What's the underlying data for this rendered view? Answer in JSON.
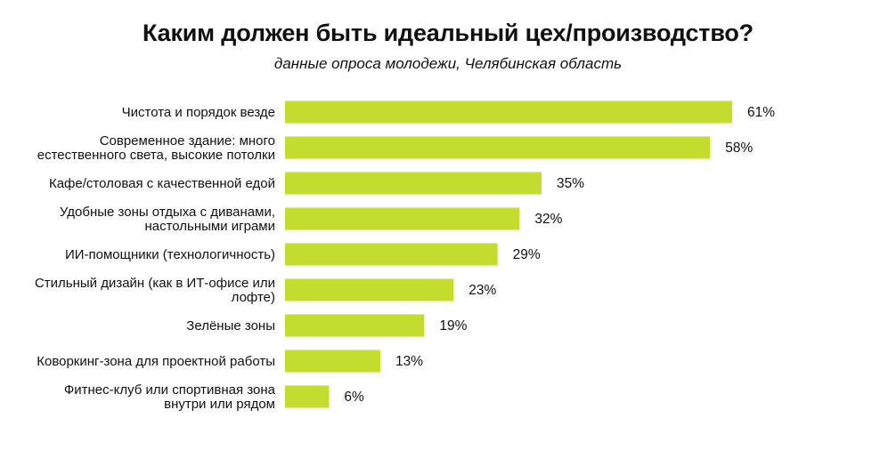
{
  "title": "Каким должен быть идеальный цех/производство?",
  "subtitle": "данные опроса молодежи, Челябинская область",
  "colors": {
    "bar": "#c3dc2e",
    "text": "#111111",
    "background": "#ffffff"
  },
  "chart_data": {
    "type": "bar",
    "orientation": "horizontal",
    "title": "Каким должен быть идеальный цех/производство?",
    "subtitle": "данные опроса молодежи, Челябинская область",
    "unit": "%",
    "grid": false,
    "legend": "none",
    "xlim": [
      0,
      61
    ],
    "categories": [
      [
        "Чистота и порядок везде"
      ],
      [
        "Современное здание: много",
        "естественного света, высокие потолки"
      ],
      [
        "Кафе/столовая с качественной едой"
      ],
      [
        "Удобные зоны отдыха с диванами,",
        "настольными играми"
      ],
      [
        "ИИ-помощники (технологичность)"
      ],
      [
        "Стильный дизайн (как в ИТ-офисе или",
        "лофте)"
      ],
      [
        "Зелёные зоны"
      ],
      [
        "Коворкинг-зона для проектной работы"
      ],
      [
        "Фитнес-клуб или спортивная зона",
        "внутри или рядом"
      ]
    ],
    "values": [
      61,
      58,
      35,
      32,
      29,
      23,
      19,
      13,
      6
    ],
    "value_labels": [
      "61%",
      "58%",
      "35%",
      "32%",
      "29%",
      "23%",
      "19%",
      "13%",
      "6%"
    ]
  }
}
